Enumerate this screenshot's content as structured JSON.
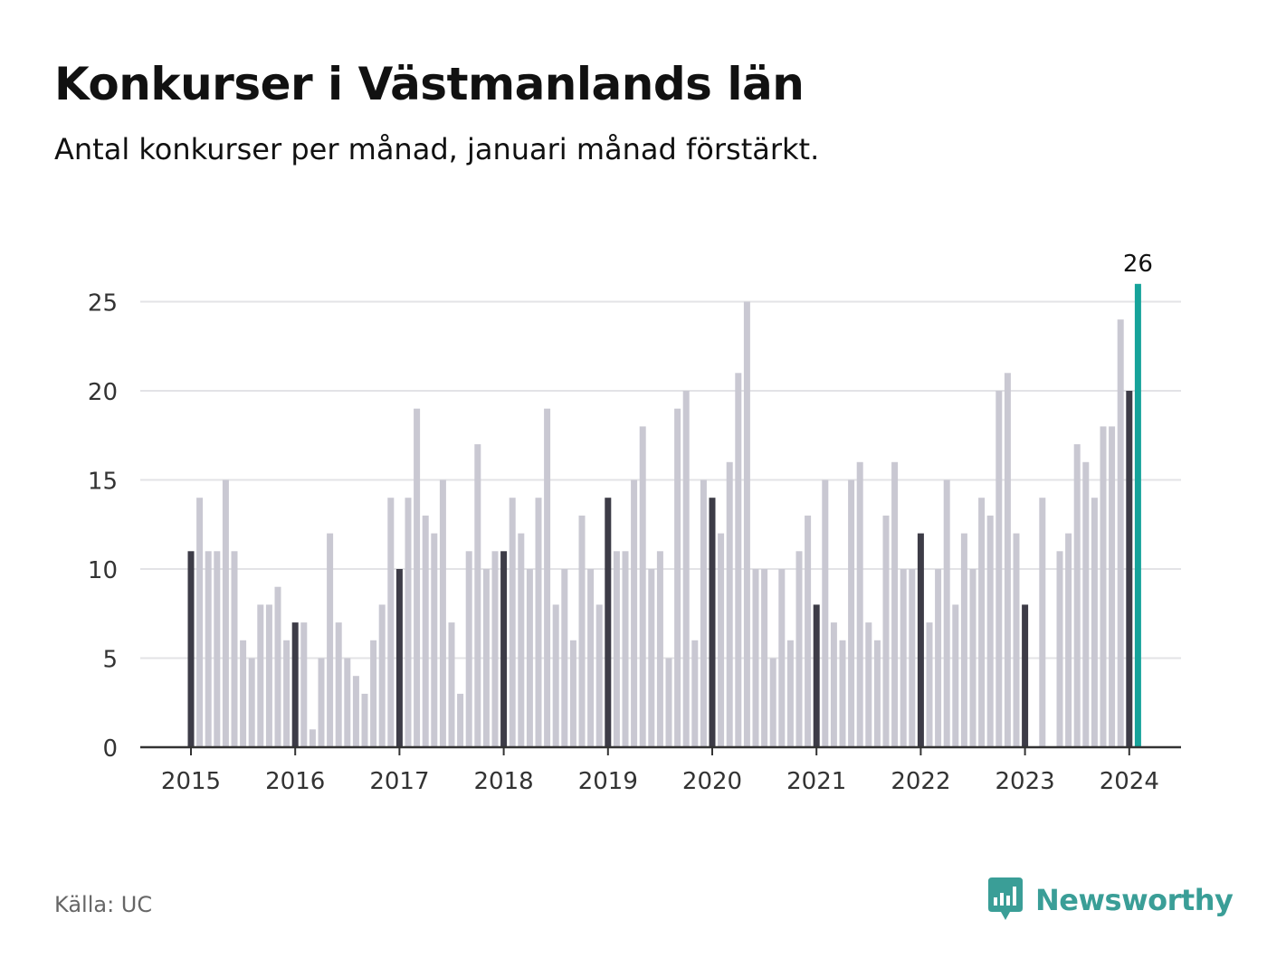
{
  "title": "Konkurser i Västmanlands län",
  "subtitle": "Antal konkurser per månad, januari månad förstärkt.",
  "source": "Källa: UC",
  "brand": {
    "name": "Newsworthy",
    "icon": "newsworthy-logo-icon",
    "color": "#3a9e97"
  },
  "colors": {
    "january": "#3d3c47",
    "other": "#c9c8d2",
    "latest": "#16a39a",
    "grid": "#e3e3e6",
    "axis": "#333333"
  },
  "chart_data": {
    "type": "bar",
    "title": "Konkurser i Västmanlands län",
    "subtitle": "Antal konkurser per månad, januari månad förstärkt.",
    "ylim": [
      0,
      25
    ],
    "yticks": [
      "0",
      "5",
      "10",
      "15",
      "20",
      "25"
    ],
    "xtick_labels": [
      "2015",
      "2016",
      "2017",
      "2018",
      "2019",
      "2020",
      "2021",
      "2022",
      "2023",
      "2024"
    ],
    "start": "2015-01",
    "grid": true,
    "highlighted_label": "26",
    "values": [
      11,
      14,
      11,
      11,
      15,
      11,
      6,
      5,
      8,
      8,
      9,
      6,
      7,
      7,
      1,
      5,
      12,
      7,
      5,
      4,
      3,
      6,
      8,
      14,
      10,
      14,
      19,
      13,
      12,
      15,
      7,
      3,
      11,
      17,
      10,
      11,
      11,
      14,
      12,
      10,
      14,
      19,
      8,
      10,
      6,
      13,
      10,
      8,
      14,
      11,
      11,
      15,
      18,
      10,
      11,
      5,
      19,
      20,
      6,
      15,
      14,
      12,
      16,
      21,
      25,
      10,
      10,
      5,
      10,
      6,
      11,
      13,
      8,
      15,
      7,
      6,
      15,
      16,
      7,
      6,
      13,
      16,
      10,
      10,
      12,
      7,
      10,
      15,
      8,
      12,
      10,
      14,
      13,
      20,
      21,
      12,
      8,
      0,
      14,
      0,
      11,
      12,
      17,
      16,
      14,
      18,
      18,
      24,
      20,
      26
    ]
  }
}
